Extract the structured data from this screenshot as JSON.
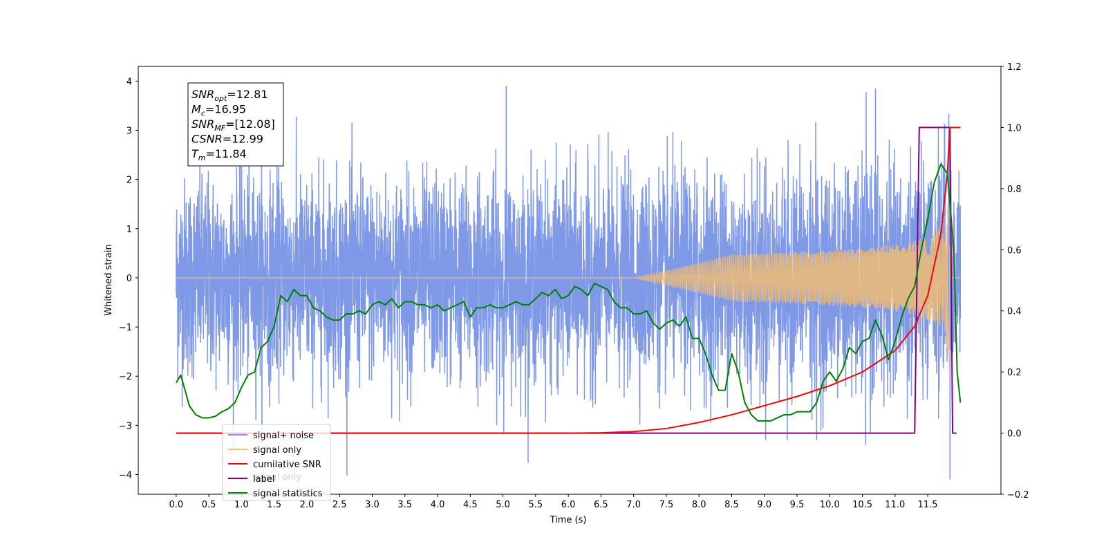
{
  "chart_data": {
    "type": "line",
    "xlabel": "Time (s)",
    "ylabel_left": "Whitened strain",
    "ylabel_right": "",
    "xlim": [
      -0.58,
      12.62
    ],
    "ylim_left": [
      -4.4,
      4.3
    ],
    "ylim_right": [
      -0.2,
      1.2
    ],
    "x_ticks": [
      "0.0",
      "0.5",
      "1.0",
      "1.5",
      "2.0",
      "2.5",
      "3.0",
      "3.5",
      "4.0",
      "4.5",
      "5.0",
      "5.5",
      "6.0",
      "6.5",
      "7.0",
      "7.5",
      "8.0",
      "8.5",
      "9.0",
      "9.5",
      "10.0",
      "10.5",
      "11.0",
      "11.5"
    ],
    "y_ticks_left": [
      "4",
      "3",
      "2",
      "1",
      "0",
      "−1",
      "−2",
      "−3",
      "−4"
    ],
    "y_ticks_right": [
      "1.2",
      "1.0",
      "0.8",
      "0.6",
      "0.4",
      "0.2",
      "0.0",
      "−0.2"
    ],
    "grid": false,
    "legend_position": "lower-left",
    "annotation": {
      "lines": [
        {
          "base": "SNR",
          "sub": "opt",
          "value": "=12.81"
        },
        {
          "base": "M",
          "sub": "c",
          "value": "=16.95"
        },
        {
          "base": "SNR",
          "sub": "MF",
          "value": "=[12.08]"
        },
        {
          "base": "CSNR",
          "sub": "",
          "value": "=12.99"
        },
        {
          "base": "T",
          "sub": "m",
          "value": "=11.84"
        }
      ]
    },
    "legend_entries": [
      {
        "label": "signal+ noise",
        "color": "#7893e6"
      },
      {
        "label": "signal only",
        "color": "#ffc266"
      },
      {
        "label": "cumilative SNR",
        "color": "#ff0000"
      },
      {
        "label": "label",
        "color": "#800080"
      },
      {
        "label": "signal statistics",
        "color": "#008000"
      }
    ],
    "hidden_legend_text": "signal only",
    "series": [
      {
        "name": "signal+ noise",
        "axis": "left",
        "color": "#7893e6",
        "x_range": [
          0.0,
          12.0
        ],
        "envelope_min": -4.1,
        "envelope_max": 3.9,
        "description_points": [
          [
            5.05,
            3.9
          ],
          [
            10.7,
            3.85
          ],
          [
            11.84,
            -4.1
          ],
          [
            10.55,
            -3.4
          ],
          [
            9.35,
            -3.3
          ],
          [
            9.8,
            -3.3
          ]
        ]
      },
      {
        "name": "signal only",
        "axis": "left",
        "color": "#ffc266",
        "chirp_start": 7.0,
        "chirp_end": 11.84,
        "peak_amplitude": 2.6
      },
      {
        "name": "cumilative SNR",
        "axis": "right",
        "color": "#ff0000",
        "x": [
          0.0,
          6.0,
          6.5,
          7.0,
          7.5,
          8.0,
          8.5,
          9.0,
          9.5,
          10.0,
          10.5,
          11.0,
          11.3,
          11.5,
          11.7,
          11.8,
          11.84,
          11.9,
          12.0
        ],
        "values": [
          0.0,
          0.0,
          0.001,
          0.005,
          0.015,
          0.035,
          0.06,
          0.09,
          0.12,
          0.155,
          0.2,
          0.27,
          0.35,
          0.45,
          0.65,
          0.85,
          1.0,
          1.0,
          1.0
        ]
      },
      {
        "name": "label",
        "axis": "right",
        "color": "#800080",
        "x": [
          0.0,
          11.3,
          11.37,
          11.84,
          11.88,
          11.94
        ],
        "values": [
          0.0,
          0.0,
          1.0,
          1.0,
          0.0,
          0.0
        ]
      },
      {
        "name": "signal statistics",
        "axis": "right",
        "color": "#008000",
        "x": [
          0.0,
          0.07,
          0.15,
          0.2,
          0.3,
          0.4,
          0.5,
          0.6,
          0.7,
          0.8,
          0.9,
          1.0,
          1.1,
          1.2,
          1.3,
          1.4,
          1.5,
          1.6,
          1.7,
          1.8,
          1.9,
          2.0,
          2.1,
          2.2,
          2.3,
          2.4,
          2.5,
          2.6,
          2.7,
          2.8,
          2.9,
          3.0,
          3.1,
          3.2,
          3.3,
          3.4,
          3.5,
          3.6,
          3.7,
          3.8,
          3.9,
          4.0,
          4.1,
          4.2,
          4.3,
          4.4,
          4.5,
          4.6,
          4.7,
          4.8,
          4.9,
          5.0,
          5.1,
          5.2,
          5.3,
          5.4,
          5.5,
          5.6,
          5.7,
          5.8,
          5.9,
          6.0,
          6.1,
          6.2,
          6.3,
          6.4,
          6.5,
          6.6,
          6.7,
          6.8,
          6.9,
          7.0,
          7.1,
          7.2,
          7.3,
          7.4,
          7.5,
          7.6,
          7.7,
          7.8,
          7.9,
          8.0,
          8.1,
          8.2,
          8.3,
          8.4,
          8.5,
          8.6,
          8.7,
          8.8,
          8.9,
          9.0,
          9.1,
          9.2,
          9.3,
          9.4,
          9.5,
          9.6,
          9.7,
          9.8,
          9.9,
          10.0,
          10.1,
          10.2,
          10.3,
          10.4,
          10.5,
          10.6,
          10.7,
          10.8,
          10.9,
          11.0,
          11.1,
          11.2,
          11.3,
          11.4,
          11.5,
          11.6,
          11.7,
          11.8,
          11.9,
          11.95,
          12.0
        ],
        "values": [
          0.165,
          0.19,
          0.13,
          0.09,
          0.06,
          0.05,
          0.05,
          0.055,
          0.07,
          0.08,
          0.1,
          0.15,
          0.19,
          0.2,
          0.28,
          0.3,
          0.35,
          0.45,
          0.43,
          0.47,
          0.45,
          0.45,
          0.41,
          0.4,
          0.38,
          0.37,
          0.37,
          0.39,
          0.39,
          0.4,
          0.39,
          0.42,
          0.43,
          0.42,
          0.44,
          0.41,
          0.43,
          0.43,
          0.42,
          0.42,
          0.41,
          0.42,
          0.4,
          0.41,
          0.42,
          0.43,
          0.38,
          0.41,
          0.41,
          0.42,
          0.41,
          0.41,
          0.42,
          0.43,
          0.42,
          0.42,
          0.44,
          0.46,
          0.45,
          0.47,
          0.44,
          0.45,
          0.48,
          0.47,
          0.45,
          0.49,
          0.48,
          0.47,
          0.43,
          0.41,
          0.41,
          0.39,
          0.39,
          0.4,
          0.36,
          0.34,
          0.36,
          0.37,
          0.35,
          0.38,
          0.31,
          0.31,
          0.26,
          0.19,
          0.14,
          0.14,
          0.26,
          0.2,
          0.1,
          0.06,
          0.04,
          0.04,
          0.04,
          0.05,
          0.06,
          0.06,
          0.07,
          0.07,
          0.07,
          0.1,
          0.17,
          0.2,
          0.17,
          0.21,
          0.28,
          0.26,
          0.3,
          0.31,
          0.37,
          0.32,
          0.24,
          0.3,
          0.38,
          0.44,
          0.48,
          0.6,
          0.7,
          0.82,
          0.88,
          0.85,
          0.6,
          0.2,
          0.1
        ]
      }
    ]
  }
}
